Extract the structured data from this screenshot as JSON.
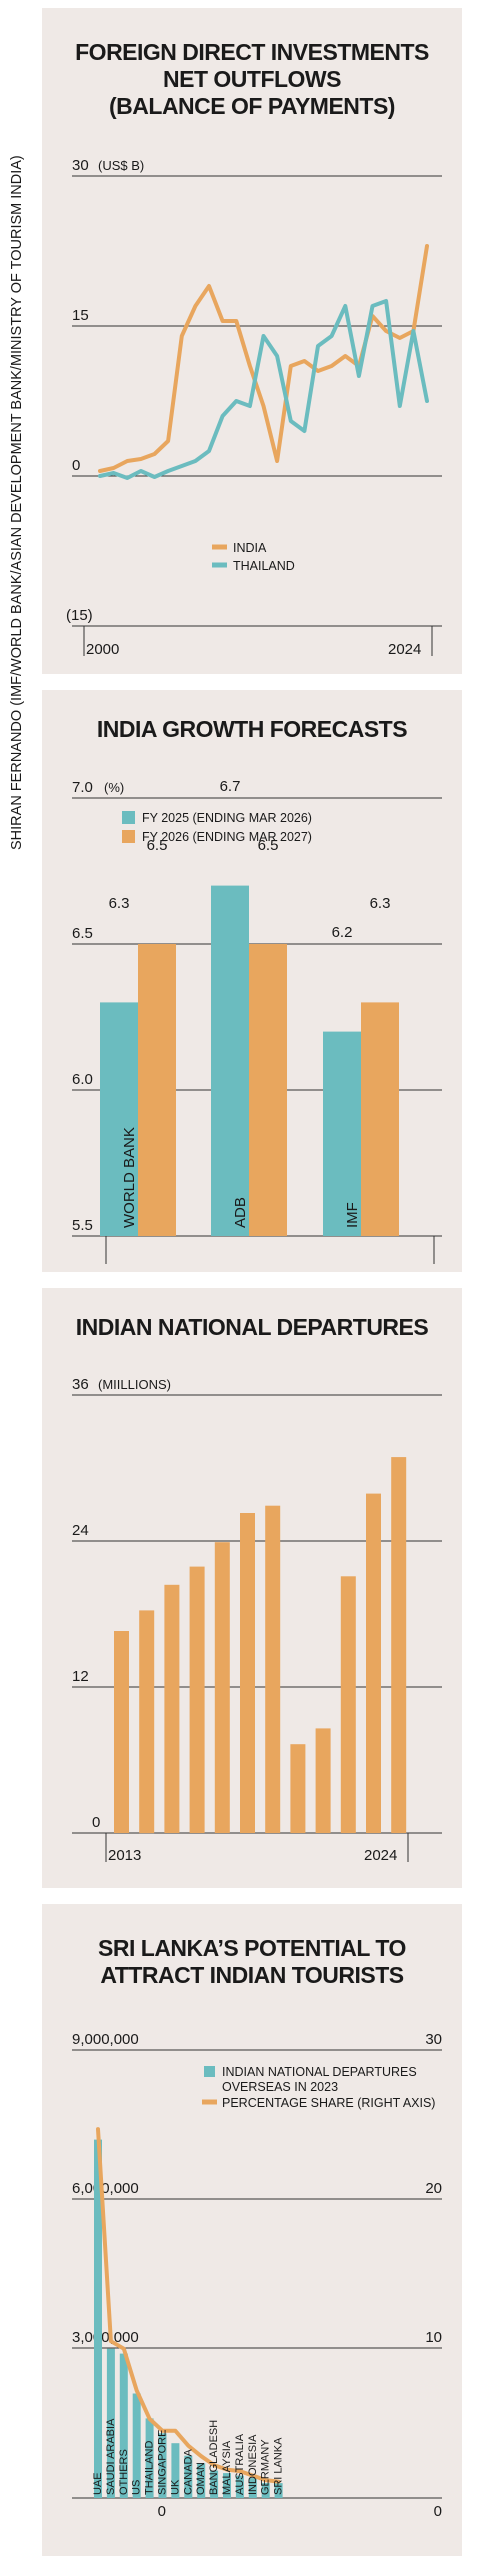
{
  "credit": "SHIRAN FERNANDO (IMF/WORLD BANK/ASIAN DEVELOPMENT BANK/MINISTRY OF TOURISM INDIA)",
  "colors": {
    "orange": "#e8a65e",
    "teal": "#6bbcbf",
    "panel": "#efe9e6",
    "grid": "#333333"
  },
  "charts": {
    "fdi": {
      "title_1": "FOREIGN DIRECT INVESTMENTS",
      "title_2": "NET OUTFLOWS",
      "title_3": "(BALANCE OF PAYMENTS)",
      "ytick_top": "30",
      "unit": "(US$ B)",
      "ytick_mid": "15",
      "ytick_zero": "0",
      "ytick_neg": "(15)",
      "x_start": "2000",
      "x_end": "2024",
      "legend_india": "INDIA",
      "legend_thailand": "THAILAND"
    },
    "growth": {
      "title": "INDIA GROWTH FORECASTS",
      "ytick_top": "7.0",
      "unit": "(%)",
      "ytick_65": "6.5",
      "ytick_60": "6.0",
      "ytick_55": "5.5",
      "legend_fy25": "FY 2025 (ENDING MAR 2026)",
      "legend_fy26": "FY 2026 (ENDING MAR 2027)",
      "cat_wb": "WORLD BANK",
      "cat_adb": "ADB",
      "cat_imf": "IMF",
      "v_wb_25": "6.3",
      "v_wb_26": "6.5",
      "v_adb_25": "6.7",
      "v_adb_26": "6.5",
      "v_imf_25": "6.2",
      "v_imf_26": "6.3"
    },
    "departures": {
      "title": "INDIAN NATIONAL DEPARTURES",
      "ytick_top": "36",
      "unit": "(MIILLIONS)",
      "ytick_24": "24",
      "ytick_12": "12",
      "ytick_0": "0",
      "x_start": "2013",
      "x_end": "2024"
    },
    "srilanka": {
      "title_1": "SRI LANKA’S POTENTIAL TO",
      "title_2": "ATTRACT INDIAN TOURISTS",
      "yl_top": "9,000,000",
      "yl_6m": "6,000,000",
      "yl_3m": "3,000,000",
      "yl_0": "0",
      "yr_30": "30",
      "yr_20": "20",
      "yr_10": "10",
      "yr_0": "0",
      "legend_bars_1": "INDIAN NATIONAL DEPARTURES",
      "legend_bars_2": "OVERSEAS IN 2023",
      "legend_line": "PERCENTAGE SHARE (RIGHT AXIS)"
    }
  },
  "chart_data": [
    {
      "type": "line",
      "title": "FOREIGN DIRECT INVESTMENTS NET OUTFLOWS (BALANCE OF PAYMENTS)",
      "ylabel": "US$ B",
      "ylim": [
        -15,
        30
      ],
      "x": [
        2000,
        2001,
        2002,
        2003,
        2004,
        2005,
        2006,
        2007,
        2008,
        2009,
        2010,
        2011,
        2012,
        2013,
        2014,
        2015,
        2016,
        2017,
        2018,
        2019,
        2020,
        2021,
        2022,
        2023,
        2024
      ],
      "series": [
        {
          "name": "INDIA",
          "values": [
            0.5,
            0.8,
            1.5,
            1.7,
            2.2,
            3.5,
            14,
            17,
            19,
            15.5,
            15.5,
            11,
            7,
            1.5,
            11,
            11.5,
            10.5,
            11,
            12,
            11,
            16,
            14.5,
            13.8,
            14.5,
            23
          ]
        },
        {
          "name": "THAILAND",
          "values": [
            0,
            0.3,
            -0.2,
            0.5,
            -0.1,
            0.5,
            1,
            1.5,
            2.5,
            6,
            7.5,
            7,
            14,
            12,
            5.5,
            4.5,
            13,
            14,
            17,
            10,
            17,
            17.5,
            7,
            14.5,
            7.5
          ]
        }
      ]
    },
    {
      "type": "bar",
      "title": "INDIA GROWTH FORECASTS",
      "ylabel": "%",
      "ylim": [
        5.5,
        7.0
      ],
      "categories": [
        "WORLD BANK",
        "ADB",
        "IMF"
      ],
      "series": [
        {
          "name": "FY 2025 (ENDING MAR 2026)",
          "values": [
            6.3,
            6.7,
            6.2
          ]
        },
        {
          "name": "FY 2026 (ENDING MAR 2027)",
          "values": [
            6.5,
            6.5,
            6.3
          ]
        }
      ]
    },
    {
      "type": "bar",
      "title": "INDIAN NATIONAL DEPARTURES",
      "ylabel": "MIILLIONS",
      "ylim": [
        0,
        36
      ],
      "categories": [
        "2013",
        "2014",
        "2015",
        "2016",
        "2017",
        "2018",
        "2019",
        "2020",
        "2021",
        "2022",
        "2023",
        "2024"
      ],
      "values": [
        16.6,
        18.3,
        20.4,
        21.9,
        23.9,
        26.3,
        26.9,
        7.3,
        8.6,
        21.1,
        27.9,
        30.9
      ]
    },
    {
      "type": "bar",
      "title": "SRI LANKA’S POTENTIAL TO ATTRACT INDIAN TOURISTS",
      "ylim": [
        0,
        9000000
      ],
      "ylim_right": [
        0,
        30
      ],
      "categories": [
        "UAE",
        "SAUDI ARABIA",
        "OTHERS",
        "US",
        "THAILAND",
        "SINGAPORE",
        "UK",
        "CANADA",
        "OMAN",
        "BANGLADESH",
        "MALAYSIA",
        "AUSTRALIA",
        "INDONESIA",
        "GERMANY",
        "SRI LANKA"
      ],
      "series": [
        {
          "name": "INDIAN NATIONAL DEPARTURES OVERSEAS IN 2023",
          "values": [
            7200000,
            3000000,
            2900000,
            2100000,
            1600000,
            1300000,
            1100000,
            850000,
            700000,
            550000,
            500000,
            450000,
            400000,
            300000,
            300000
          ]
        },
        {
          "name": "PERCENTAGE SHARE (RIGHT AXIS)",
          "values": [
            24.7,
            10.5,
            10.0,
            7.2,
            5.3,
            4.5,
            4.5,
            3.5,
            2.8,
            2.2,
            1.9,
            1.8,
            1.5,
            1.2,
            1.1
          ]
        }
      ]
    }
  ]
}
